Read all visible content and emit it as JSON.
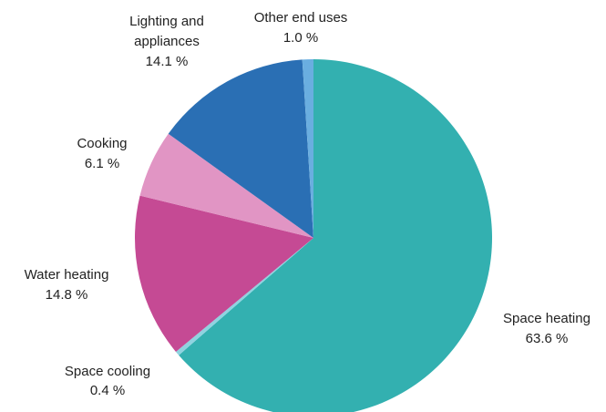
{
  "chart_data": {
    "type": "pie",
    "categories": [
      "Space heating",
      "Space cooling",
      "Water heating",
      "Cooking",
      "Lighting and appliances",
      "Other end uses"
    ],
    "values": [
      63.6,
      0.4,
      14.8,
      6.1,
      14.1,
      1.0
    ],
    "value_labels": [
      "63.6 %",
      "0.4 %",
      "14.8 %",
      "6.1 %",
      "14.1 %",
      "1.0 %"
    ],
    "colors": [
      "#33b0b0",
      "#8fd3e0",
      "#c54a94",
      "#e195c4",
      "#2a6fb4",
      "#6aaee0"
    ],
    "start": "12 o'clock",
    "direction": "clockwise",
    "legend": "none"
  }
}
